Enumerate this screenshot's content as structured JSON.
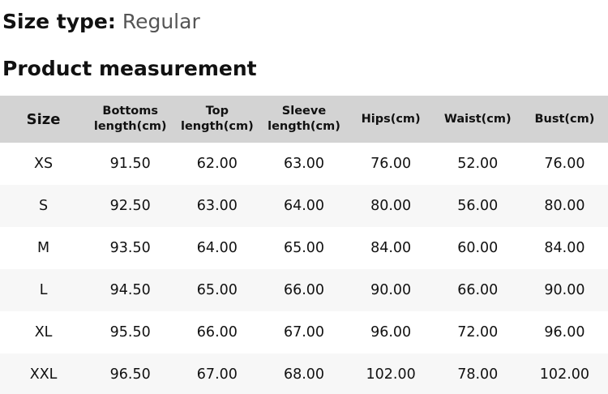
{
  "size_type": {
    "label": "Size type:",
    "value": "Regular"
  },
  "section_title": "Product measurement",
  "colors": {
    "header_background": "#d3d3d3",
    "alternate_row_background": "#f7f7f7",
    "text": "#111111",
    "muted_text": "#555555"
  },
  "table": {
    "columns": [
      "Size",
      "Bottoms length(cm)",
      "Top length(cm)",
      "Sleeve length(cm)",
      "Hips(cm)",
      "Waist(cm)",
      "Bust(cm)"
    ],
    "rows": [
      [
        "XS",
        "91.50",
        "62.00",
        "63.00",
        "76.00",
        "52.00",
        "76.00"
      ],
      [
        "S",
        "92.50",
        "63.00",
        "64.00",
        "80.00",
        "56.00",
        "80.00"
      ],
      [
        "M",
        "93.50",
        "64.00",
        "65.00",
        "84.00",
        "60.00",
        "84.00"
      ],
      [
        "L",
        "94.50",
        "65.00",
        "66.00",
        "90.00",
        "66.00",
        "90.00"
      ],
      [
        "XL",
        "95.50",
        "66.00",
        "67.00",
        "96.00",
        "72.00",
        "96.00"
      ],
      [
        "XXL",
        "96.50",
        "67.00",
        "68.00",
        "102.00",
        "78.00",
        "102.00"
      ]
    ]
  }
}
